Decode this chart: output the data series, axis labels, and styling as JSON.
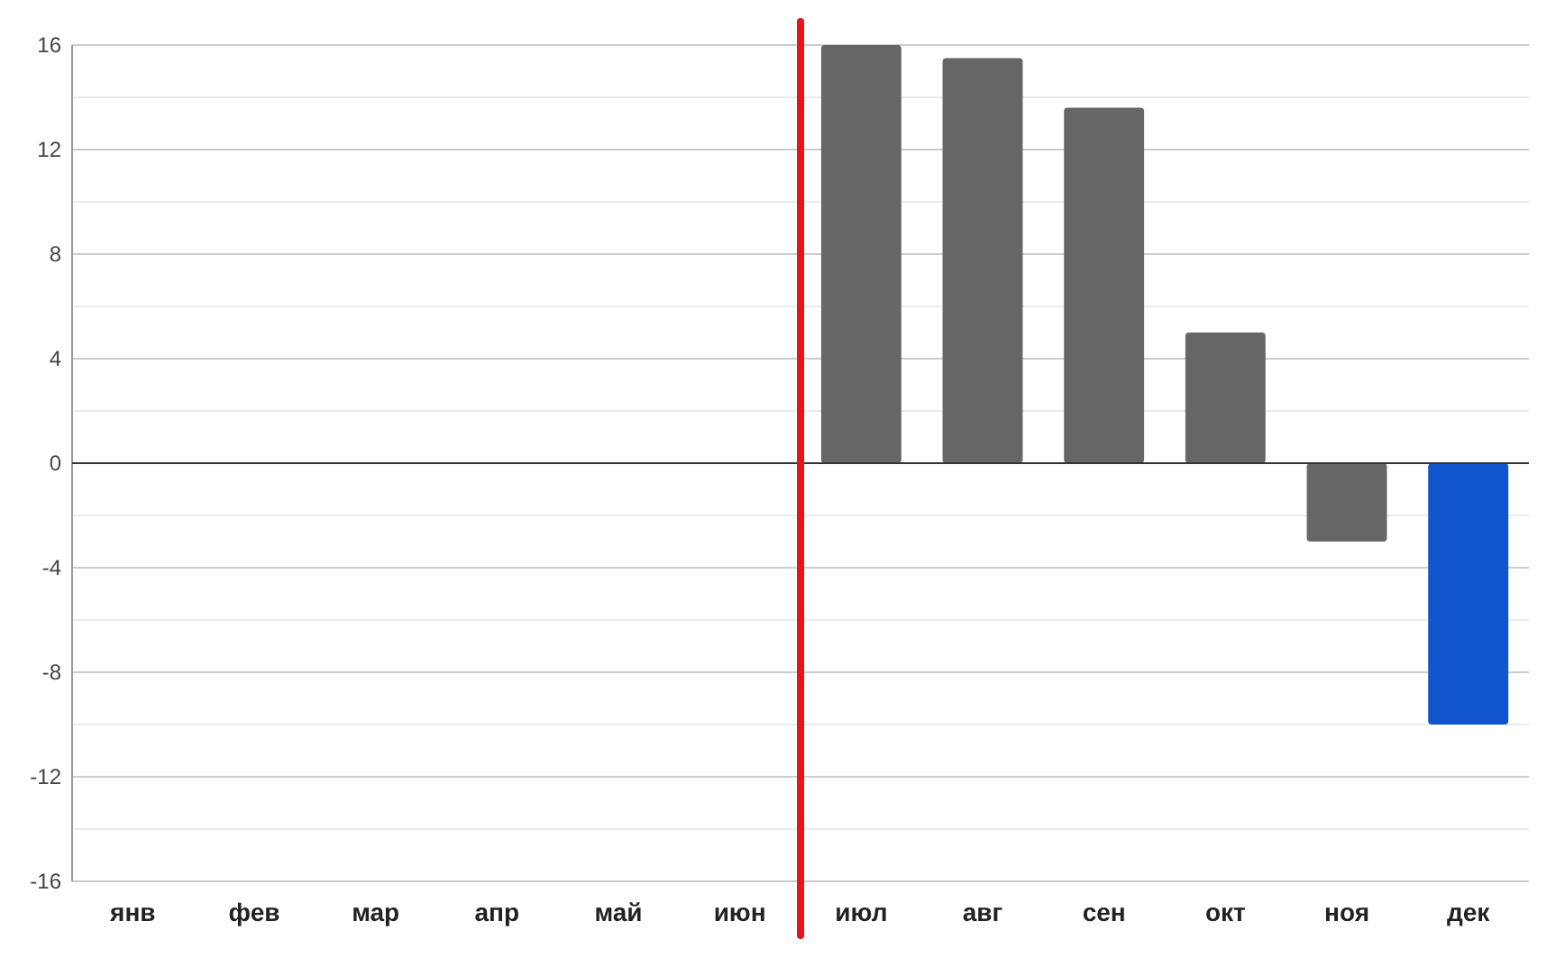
{
  "chart_data": {
    "type": "bar",
    "categories": [
      "янв",
      "фев",
      "мар",
      "апр",
      "май",
      "июн",
      "июл",
      "авг",
      "сен",
      "окт",
      "ноя",
      "дек"
    ],
    "values": [
      null,
      null,
      null,
      null,
      null,
      null,
      16,
      15.5,
      13.6,
      5,
      -3,
      -10
    ],
    "colors": [
      null,
      null,
      null,
      null,
      null,
      null,
      "#666666",
      "#666666",
      "#666666",
      "#666666",
      "#666666",
      "#1155cc"
    ],
    "ylim": [
      -16,
      16
    ],
    "yticks": [
      -16,
      -12,
      -8,
      -4,
      0,
      4,
      8,
      12,
      16
    ],
    "grid": "y"
  }
}
